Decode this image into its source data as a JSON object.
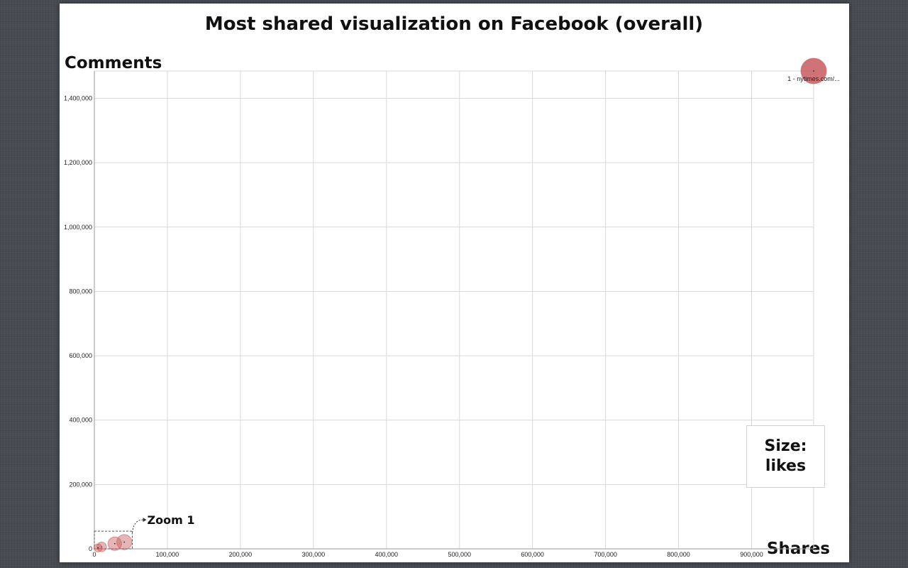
{
  "chart_data": {
    "type": "scatter",
    "title": "Most shared visualization on Facebook (overall)",
    "xlabel": "Shares",
    "ylabel": "Comments",
    "size_legend": [
      "Size:",
      "likes"
    ],
    "xlim": [
      0,
      985000
    ],
    "ylim": [
      0,
      1485000
    ],
    "x_ticks": [
      0,
      100000,
      200000,
      300000,
      400000,
      500000,
      600000,
      700000,
      800000,
      900000
    ],
    "x_tick_labels": [
      "0",
      "100,000",
      "200,000",
      "300,000",
      "400,000",
      "500,000",
      "600,000",
      "700,000",
      "800,000",
      "900,000"
    ],
    "y_ticks": [
      0,
      200000,
      400000,
      600000,
      800000,
      1000000,
      1200000,
      1400000
    ],
    "y_tick_labels": [
      "0",
      "200,000",
      "400,000",
      "600,000",
      "800,000",
      "1,000,000",
      "1,200,000",
      "1,400,000"
    ],
    "grid": true,
    "point_color": "#c85a5e",
    "points": [
      {
        "label": "1 - nytimes.com/...",
        "x": 985000,
        "y": 1485000,
        "size": 1.0
      },
      {
        "label": "",
        "x": 41000,
        "y": 21000,
        "size": 0.35
      },
      {
        "label": "",
        "x": 28000,
        "y": 16000,
        "size": 0.28
      },
      {
        "label": "",
        "x": 10000,
        "y": 6000,
        "size": 0.14
      },
      {
        "label": "",
        "x": 5000,
        "y": 3000,
        "size": 0.1
      }
    ],
    "zoom_box": {
      "label": "Zoom 1",
      "x": [
        0,
        52000
      ],
      "y": [
        0,
        55000
      ]
    }
  }
}
